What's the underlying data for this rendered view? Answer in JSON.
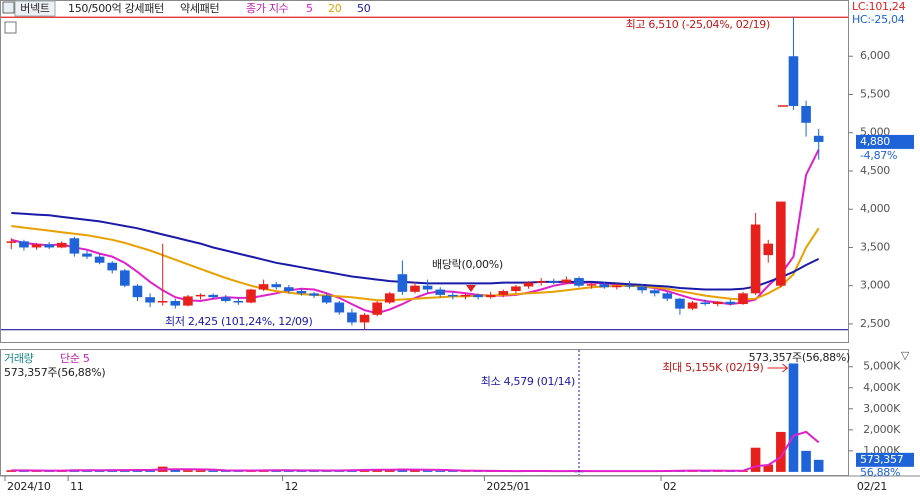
{
  "toolbar": {
    "stock": "버넥트",
    "patterns": [
      "150/500억 강세패턴",
      "약세패턴"
    ],
    "lc": "LC:101,24",
    "hc": "HC:-25,04",
    "last_date": "02/21"
  },
  "chart_data": [
    {
      "type": "candlestick",
      "legend_title": "종가 지수",
      "categories": [
        "2024/10",
        null,
        null,
        null,
        null,
        "11",
        null,
        null,
        null,
        null,
        null,
        null,
        null,
        null,
        null,
        null,
        null,
        null,
        null,
        null,
        null,
        null,
        "12",
        null,
        null,
        null,
        null,
        null,
        null,
        null,
        null,
        null,
        null,
        null,
        null,
        null,
        null,
        null,
        "2025/01",
        null,
        null,
        null,
        null,
        null,
        null,
        null,
        null,
        null,
        null,
        null,
        null,
        null,
        "02",
        null,
        null,
        null,
        null,
        null,
        null,
        null,
        null,
        null,
        null,
        null,
        null
      ],
      "open": [
        3560,
        3580,
        3500,
        3540,
        3500,
        3620,
        3420,
        3380,
        3300,
        3200,
        3000,
        2850,
        2780,
        2800,
        2740,
        2860,
        2880,
        2850,
        2800,
        2780,
        2950,
        3020,
        2980,
        2930,
        2900,
        2870,
        2780,
        2650,
        2520,
        2620,
        2780,
        3150,
        2920,
        3000,
        2950,
        2880,
        2860,
        2880,
        2850,
        2880,
        2930,
        2990,
        3040,
        3060,
        3040,
        3100,
        3000,
        3020,
        2980,
        3000,
        2990,
        2940,
        2900,
        2830,
        2700,
        2780,
        2760,
        2790,
        2760,
        2900,
        3400,
        3000,
        6000,
        5350,
        4960
      ],
      "high": [
        3620,
        3600,
        3560,
        3570,
        3580,
        3640,
        3460,
        3420,
        3320,
        3220,
        3020,
        2900,
        3550,
        2830,
        2880,
        2900,
        2900,
        2880,
        2850,
        2960,
        3080,
        3050,
        3010,
        2960,
        2920,
        2900,
        2800,
        2700,
        2640,
        2800,
        2920,
        3330,
        3050,
        3080,
        2980,
        2920,
        2900,
        2900,
        2920,
        2950,
        3010,
        3060,
        3100,
        3090,
        3120,
        3120,
        3040,
        3050,
        3030,
        3060,
        3020,
        2960,
        2920,
        2840,
        2800,
        2820,
        2800,
        2820,
        2920,
        3950,
        3600,
        4100,
        6510,
        5420,
        5050
      ],
      "low": [
        3480,
        3460,
        3470,
        3480,
        3490,
        3380,
        3350,
        3280,
        3160,
        2980,
        2800,
        2720,
        2740,
        2700,
        2730,
        2820,
        2830,
        2780,
        2750,
        2770,
        2930,
        2950,
        2900,
        2870,
        2840,
        2760,
        2620,
        2480,
        2425,
        2600,
        2760,
        2880,
        2900,
        2900,
        2850,
        2820,
        2820,
        2820,
        2830,
        2850,
        2900,
        2960,
        3000,
        3020,
        3020,
        2980,
        2960,
        2960,
        2950,
        2960,
        2900,
        2860,
        2800,
        2620,
        2680,
        2740,
        2730,
        2740,
        2750,
        2880,
        3300,
        2980,
        5300,
        4950,
        4650
      ],
      "close": [
        3580,
        3500,
        3540,
        3500,
        3560,
        3420,
        3380,
        3300,
        3200,
        3000,
        2850,
        2780,
        2800,
        2740,
        2860,
        2880,
        2850,
        2800,
        2780,
        2950,
        3020,
        2980,
        2930,
        2900,
        2870,
        2780,
        2650,
        2520,
        2620,
        2780,
        2900,
        2920,
        3000,
        2950,
        2880,
        2860,
        2880,
        2850,
        2880,
        2930,
        2990,
        3040,
        3060,
        3040,
        3080,
        3000,
        3020,
        2980,
        3000,
        2990,
        2940,
        2900,
        2830,
        2700,
        2780,
        2760,
        2790,
        2760,
        2900,
        3800,
        3550,
        4100,
        5350,
        5130,
        4880
      ],
      "up_color": "#e8201c",
      "down_color": "#1e63d8",
      "series": [
        {
          "name": "5",
          "color": "#e020c8",
          "values": [
            3600,
            3560,
            3540,
            3530,
            3540,
            3500,
            3470,
            3420,
            3380,
            3300,
            3180,
            3050,
            2940,
            2850,
            2810,
            2800,
            2830,
            2850,
            2840,
            2840,
            2870,
            2900,
            2940,
            2960,
            2950,
            2900,
            2840,
            2760,
            2680,
            2640,
            2690,
            2760,
            2840,
            2900,
            2930,
            2920,
            2900,
            2880,
            2870,
            2870,
            2880,
            2910,
            2950,
            3000,
            3030,
            3040,
            3040,
            3030,
            3020,
            3000,
            2990,
            2970,
            2930,
            2880,
            2830,
            2800,
            2780,
            2760,
            2780,
            2820,
            3000,
            3150,
            3380,
            4450,
            4780
          ]
        },
        {
          "name": "20",
          "color": "#e8a000",
          "values": [
            3780,
            3760,
            3740,
            3720,
            3700,
            3680,
            3660,
            3630,
            3600,
            3560,
            3510,
            3460,
            3400,
            3340,
            3280,
            3220,
            3160,
            3100,
            3050,
            3000,
            2960,
            2930,
            2910,
            2890,
            2880,
            2870,
            2860,
            2850,
            2830,
            2810,
            2810,
            2820,
            2830,
            2840,
            2850,
            2860,
            2860,
            2870,
            2870,
            2880,
            2890,
            2900,
            2910,
            2920,
            2940,
            2960,
            2980,
            2990,
            3000,
            3000,
            2990,
            2980,
            2960,
            2930,
            2900,
            2870,
            2850,
            2830,
            2820,
            2830,
            2900,
            2990,
            3150,
            3500,
            3750
          ]
        },
        {
          "name": "50",
          "color": "#1a1aa8",
          "values": [
            3950,
            3940,
            3930,
            3920,
            3900,
            3880,
            3860,
            3840,
            3810,
            3780,
            3750,
            3710,
            3670,
            3630,
            3590,
            3550,
            3500,
            3460,
            3420,
            3380,
            3340,
            3300,
            3270,
            3240,
            3210,
            3180,
            3150,
            3120,
            3100,
            3080,
            3060,
            3050,
            3040,
            3030,
            3030,
            3030,
            3030,
            3030,
            3030,
            3040,
            3040,
            3040,
            3050,
            3050,
            3050,
            3050,
            3050,
            3040,
            3030,
            3020,
            3010,
            3000,
            2990,
            2970,
            2960,
            2950,
            2950,
            2950,
            2960,
            2990,
            3050,
            3110,
            3180,
            3270,
            3350
          ]
        }
      ],
      "ylim": [
        2290,
        6670
      ],
      "yticks": [
        {
          "value": 2500,
          "label": "2,500"
        },
        {
          "value": 3000,
          "label": "3,000"
        },
        {
          "value": 3500,
          "label": "3,500"
        },
        {
          "value": 4000,
          "label": "4,000"
        },
        {
          "value": 4500,
          "label": "4,500"
        },
        {
          "value": 5000,
          "label": "5,000"
        },
        {
          "value": 5500,
          "label": "5,500"
        },
        {
          "value": 6000,
          "label": "6,000"
        }
      ],
      "reference_lines": [
        {
          "value": 6510,
          "color": "#e02020"
        },
        {
          "value": 2425,
          "color": "#1a1aa8"
        }
      ],
      "annotations": [
        "최고 6,510 (-25,04%, 02/19)",
        "배당락(0,00%)",
        "최저 2,425 (101,24%, 12/09)"
      ],
      "last_price_label": "4,880",
      "last_change_label": "-4,87%"
    },
    {
      "type": "bar",
      "title": "거래량",
      "values": [
        80,
        60,
        50,
        60,
        70,
        120,
        90,
        70,
        80,
        90,
        110,
        100,
        250,
        90,
        80,
        70,
        60,
        60,
        70,
        80,
        90,
        70,
        60,
        60,
        50,
        70,
        90,
        110,
        120,
        100,
        90,
        150,
        80,
        60,
        50,
        40,
        40,
        30,
        50,
        40,
        40,
        50,
        40,
        30,
        40,
        4.579,
        40,
        30,
        30,
        40,
        40,
        50,
        60,
        90,
        70,
        50,
        40,
        40,
        60,
        1150,
        350,
        1900,
        5155,
        1000,
        573.357
      ],
      "series": [
        {
          "name": "단순 5",
          "color": "#e020c8",
          "values": [
            70,
            70,
            65,
            62,
            64,
            72,
            78,
            82,
            86,
            86,
            92,
            92,
            118,
            124,
            126,
            120,
            110,
            72,
            68,
            68,
            72,
            76,
            74,
            72,
            70,
            66,
            68,
            76,
            88,
            98,
            106,
            112,
            108,
            104,
            94,
            76,
            60,
            50,
            48,
            44,
            40,
            42,
            44,
            40,
            40,
            42,
            40,
            38,
            36,
            40,
            38,
            38,
            42,
            52,
            62,
            62,
            60,
            58,
            52,
            268,
            330,
            700,
            1720,
            1900,
            1400
          ]
        }
      ],
      "ylim": [
        -100,
        5700
      ],
      "yticks": [
        {
          "value": 1000,
          "label": "1,000K"
        },
        {
          "value": 2000,
          "label": "2,000K"
        },
        {
          "value": 3000,
          "label": "3,000K"
        },
        {
          "value": 4000,
          "label": "4,000K"
        },
        {
          "value": 5000,
          "label": "5,000K"
        }
      ],
      "last_label": "573,357주(56,88%)",
      "annotations": [
        "최소 4,579 (01/14)",
        "최대 5,155K (02/19)"
      ],
      "last_value_label": "573,357",
      "last_change_label": "56,88%"
    }
  ]
}
